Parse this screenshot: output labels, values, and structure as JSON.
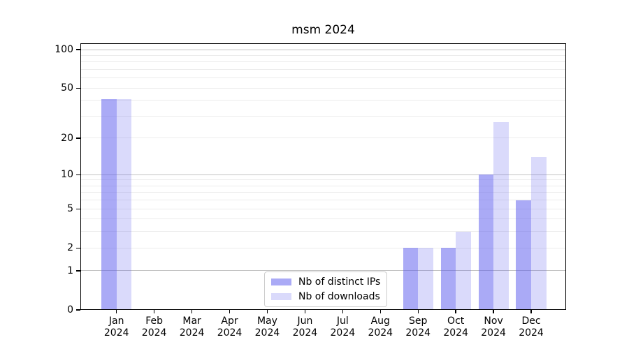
{
  "chart_data": {
    "type": "bar",
    "title": "msm 2024",
    "categories": [
      "Jan",
      "Feb",
      "Mar",
      "Apr",
      "May",
      "Jun",
      "Jul",
      "Aug",
      "Sep",
      "Oct",
      "Nov",
      "Dec"
    ],
    "category_year": "2024",
    "series": [
      {
        "name": "Nb of distinct IPs",
        "color": "rgba(85,85,238,0.50)",
        "values": [
          41,
          0,
          0,
          0,
          0,
          0,
          0,
          0,
          2,
          2,
          10,
          6
        ]
      },
      {
        "name": "Nb of downloads",
        "color": "rgba(85,85,238,0.22)",
        "values": [
          41,
          0,
          0,
          0,
          0,
          0,
          0,
          0,
          2,
          3,
          27,
          14
        ]
      }
    ],
    "yscale": "log1p",
    "ylim": [
      0,
      112
    ],
    "yticks": [
      0,
      1,
      2,
      5,
      10,
      20,
      50,
      100
    ],
    "major_gridlines": [
      1,
      10,
      100
    ],
    "minor_gridlines": [
      2,
      3,
      4,
      5,
      6,
      7,
      8,
      9,
      20,
      30,
      40,
      50,
      60,
      70,
      80,
      90
    ],
    "legend_position": "lower center",
    "colors": {
      "grid_major": "#c2c2c2",
      "grid_minor": "#ececec",
      "axis": "#000000",
      "text": "#000000"
    }
  }
}
